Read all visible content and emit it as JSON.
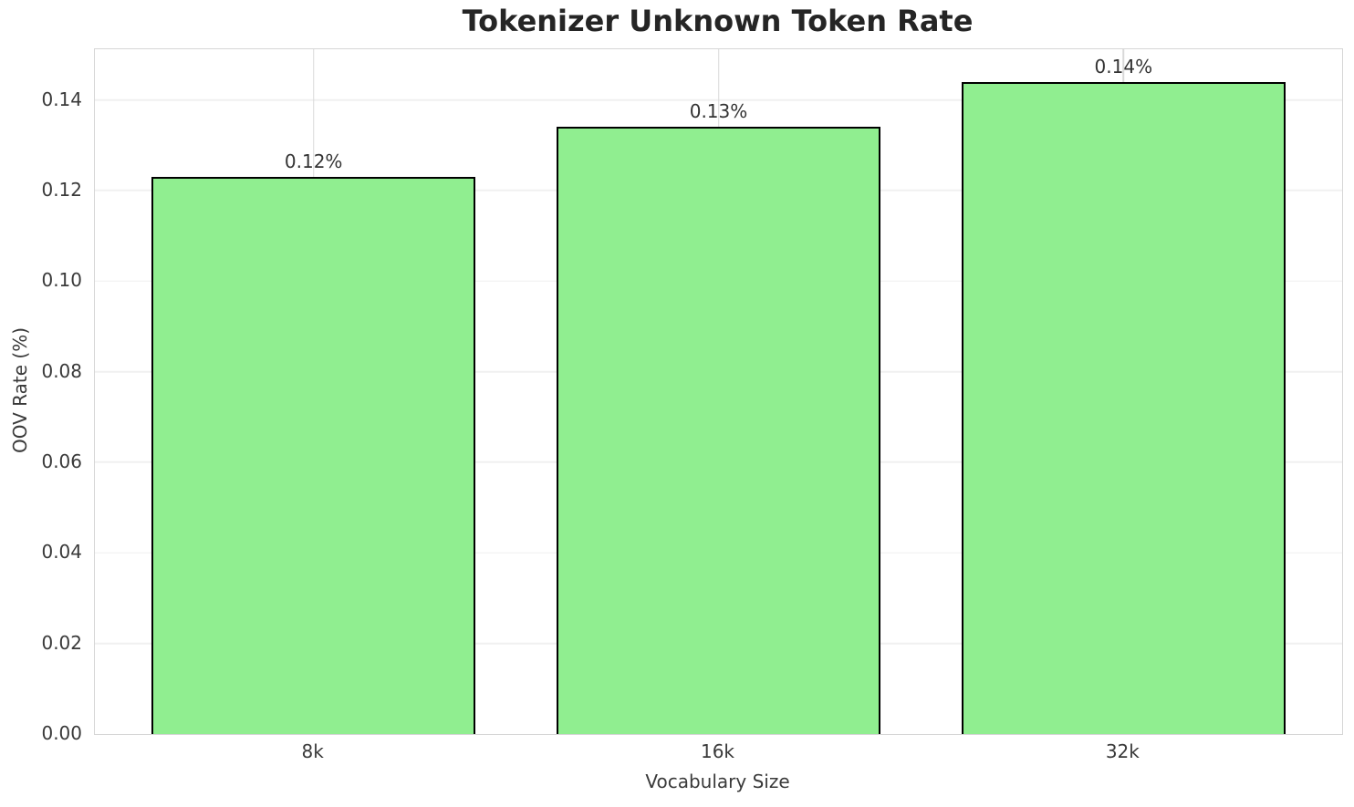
{
  "chart_data": {
    "type": "bar",
    "title": "Tokenizer Unknown Token Rate",
    "xlabel": "Vocabulary Size",
    "ylabel": "OOV Rate (%)",
    "categories": [
      "8k",
      "16k",
      "32k"
    ],
    "values": [
      0.123,
      0.134,
      0.144
    ],
    "bar_labels": [
      "0.12%",
      "0.13%",
      "0.14%"
    ],
    "ylim": [
      0,
      0.1512
    ],
    "xlim": [
      -0.54,
      2.54
    ],
    "bar_width_units": 0.8,
    "ytick_values": [
      0,
      0.02,
      0.04,
      0.06,
      0.08,
      0.1,
      0.12,
      0.14
    ],
    "ytick_labels": [
      "0.00",
      "0.02",
      "0.04",
      "0.06",
      "0.08",
      "0.10",
      "0.12",
      "0.14"
    ],
    "grid": true,
    "legend": false,
    "colors": {
      "bar_fill": "#90EE90",
      "bar_edge": "#000000",
      "grid_horizontal": "#f0f0f0",
      "grid_vertical": "#d9d9d9",
      "spine": "#d6d6d6",
      "title_text": "#252525",
      "tick_text": "#3a3a3a",
      "background": "#ffffff"
    }
  }
}
